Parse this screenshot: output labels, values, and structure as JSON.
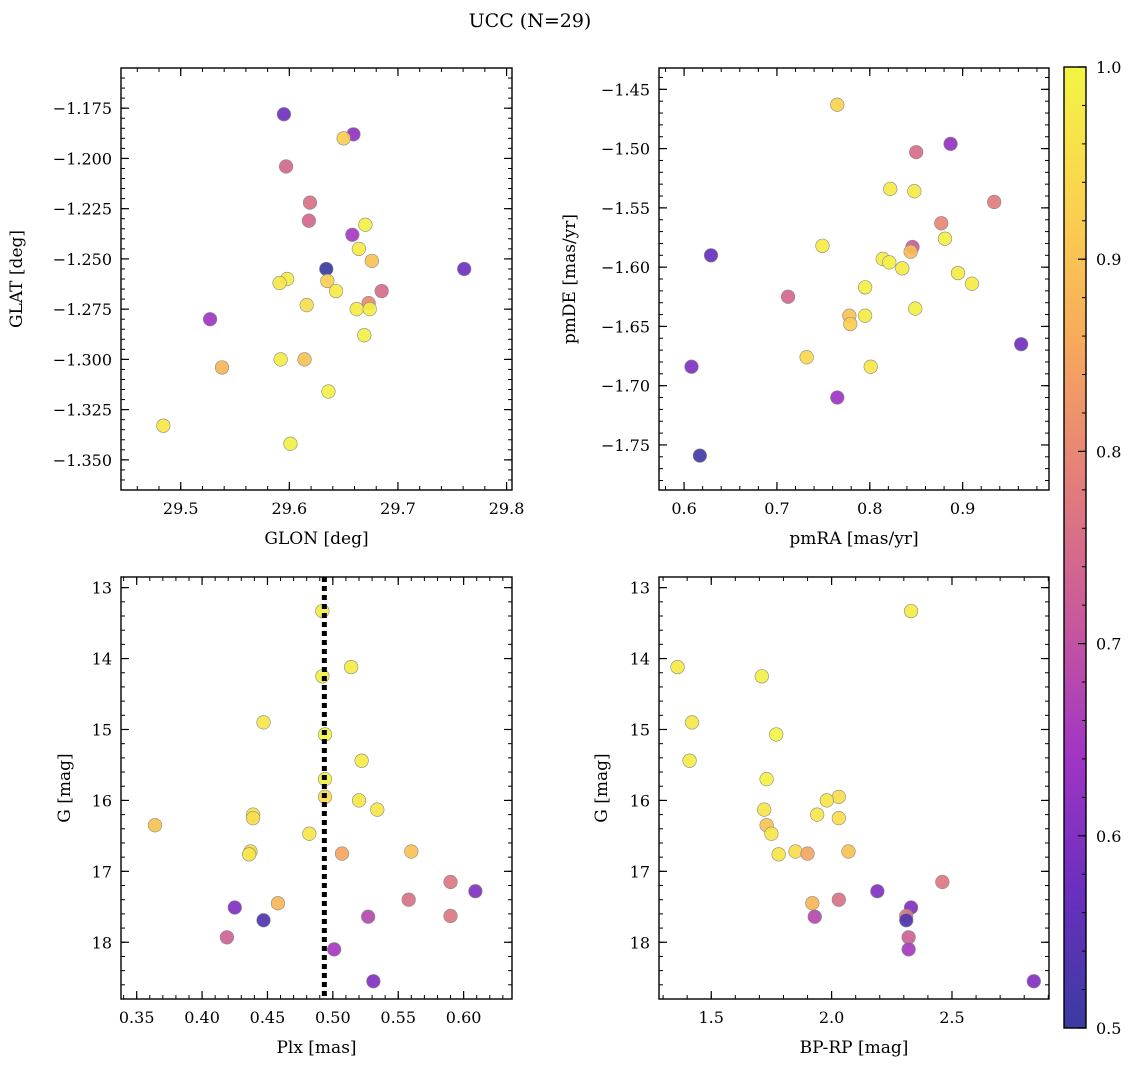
{
  "figure": {
    "title": "UCC (N=29)"
  },
  "colormap": {
    "name": "plasma",
    "stops": [
      "#3b3ba0",
      "#6a2fbf",
      "#a235c4",
      "#c85a9a",
      "#e37f7a",
      "#f7a95c",
      "#fbd24f",
      "#f2f544"
    ],
    "vmin": 0.5,
    "vmax": 1.0,
    "ticks": [
      0.5,
      0.6,
      0.7,
      0.8,
      0.9,
      1.0
    ],
    "tick_labels": [
      "0.5",
      "0.6",
      "0.7",
      "0.8",
      "0.9",
      "1.0"
    ]
  },
  "chart_data": [
    {
      "type": "scatter",
      "id": "glon-glat",
      "xlabel": "GLON [deg]",
      "ylabel": "GLAT [deg]",
      "xlim": [
        29.445,
        29.805
      ],
      "ylim": [
        -1.365,
        -1.155
      ],
      "y_inverted": false,
      "xticks": [
        29.5,
        29.6,
        29.7,
        29.8
      ],
      "xtick_labels": [
        "29.5",
        "29.6",
        "29.7",
        "29.8"
      ],
      "yticks": [
        -1.35,
        -1.325,
        -1.3,
        -1.275,
        -1.25,
        -1.225,
        -1.2,
        -1.175
      ],
      "ytick_labels": [
        "−1.350",
        "−1.325",
        "−1.300",
        "−1.275",
        "−1.250",
        "−1.225",
        "−1.200",
        "−1.175"
      ],
      "points": [
        [
          29.595,
          -1.178,
          0.58
        ],
        [
          29.659,
          -1.188,
          0.62
        ],
        [
          29.65,
          -1.19,
          0.92
        ],
        [
          29.597,
          -1.204,
          0.74
        ],
        [
          29.619,
          -1.222,
          0.76
        ],
        [
          29.618,
          -1.231,
          0.74
        ],
        [
          29.67,
          -1.233,
          0.99
        ],
        [
          29.658,
          -1.238,
          0.65
        ],
        [
          29.664,
          -1.245,
          0.98
        ],
        [
          29.676,
          -1.251,
          0.9
        ],
        [
          29.634,
          -1.255,
          0.5
        ],
        [
          29.761,
          -1.255,
          0.58
        ],
        [
          29.598,
          -1.26,
          0.98
        ],
        [
          29.591,
          -1.262,
          0.97
        ],
        [
          29.635,
          -1.261,
          0.92
        ],
        [
          29.643,
          -1.266,
          0.98
        ],
        [
          29.685,
          -1.266,
          0.75
        ],
        [
          29.673,
          -1.272,
          0.8
        ],
        [
          29.616,
          -1.273,
          0.95
        ],
        [
          29.662,
          -1.275,
          0.98
        ],
        [
          29.674,
          -1.275,
          0.99
        ],
        [
          29.527,
          -1.28,
          0.64
        ],
        [
          29.669,
          -1.288,
          0.99
        ],
        [
          29.592,
          -1.3,
          0.98
        ],
        [
          29.614,
          -1.3,
          0.9
        ],
        [
          29.538,
          -1.304,
          0.88
        ],
        [
          29.636,
          -1.316,
          0.99
        ],
        [
          29.484,
          -1.333,
          0.97
        ],
        [
          29.601,
          -1.342,
          0.99
        ]
      ]
    },
    {
      "type": "scatter",
      "id": "pmra-pmde",
      "xlabel": "pmRA [mas/yr]",
      "ylabel": "pmDE [mas/yr]",
      "xlim": [
        0.573,
        0.993
      ],
      "ylim": [
        -1.788,
        -1.432
      ],
      "y_inverted": false,
      "xticks": [
        0.6,
        0.7,
        0.8,
        0.9
      ],
      "xtick_labels": [
        "0.6",
        "0.7",
        "0.8",
        "0.9"
      ],
      "yticks": [
        -1.75,
        -1.7,
        -1.65,
        -1.6,
        -1.55,
        -1.5,
        -1.45
      ],
      "ytick_labels": [
        "−1.75",
        "−1.70",
        "−1.65",
        "−1.60",
        "−1.55",
        "−1.50",
        "−1.45"
      ],
      "points": [
        [
          0.765,
          -1.463,
          0.93
        ],
        [
          0.887,
          -1.496,
          0.62
        ],
        [
          0.85,
          -1.503,
          0.75
        ],
        [
          0.822,
          -1.534,
          0.98
        ],
        [
          0.848,
          -1.536,
          0.98
        ],
        [
          0.934,
          -1.545,
          0.78
        ],
        [
          0.877,
          -1.563,
          0.8
        ],
        [
          0.881,
          -1.576,
          0.99
        ],
        [
          0.749,
          -1.582,
          0.98
        ],
        [
          0.846,
          -1.583,
          0.72
        ],
        [
          0.844,
          -1.587,
          0.89
        ],
        [
          0.629,
          -1.59,
          0.57
        ],
        [
          0.814,
          -1.593,
          0.98
        ],
        [
          0.821,
          -1.596,
          0.99
        ],
        [
          0.835,
          -1.601,
          0.98
        ],
        [
          0.895,
          -1.605,
          0.98
        ],
        [
          0.91,
          -1.614,
          0.98
        ],
        [
          0.795,
          -1.617,
          0.99
        ],
        [
          0.712,
          -1.625,
          0.74
        ],
        [
          0.849,
          -1.635,
          0.99
        ],
        [
          0.778,
          -1.641,
          0.9
        ],
        [
          0.795,
          -1.641,
          0.98
        ],
        [
          0.779,
          -1.648,
          0.92
        ],
        [
          0.963,
          -1.665,
          0.58
        ],
        [
          0.732,
          -1.676,
          0.94
        ],
        [
          0.608,
          -1.684,
          0.6
        ],
        [
          0.801,
          -1.684,
          0.97
        ],
        [
          0.765,
          -1.71,
          0.64
        ],
        [
          0.617,
          -1.759,
          0.51
        ]
      ]
    },
    {
      "type": "scatter",
      "id": "plx-g",
      "xlabel": "Plx [mas]",
      "ylabel": "G [mag]",
      "xlim": [
        0.338,
        0.637
      ],
      "ylim": [
        12.85,
        18.8
      ],
      "y_inverted": true,
      "vline": 0.4935,
      "xticks": [
        0.35,
        0.4,
        0.45,
        0.5,
        0.55,
        0.6
      ],
      "xtick_labels": [
        "0.35",
        "0.40",
        "0.45",
        "0.50",
        "0.55",
        "0.60"
      ],
      "yticks": [
        13,
        14,
        15,
        16,
        17,
        18
      ],
      "ytick_labels": [
        "13",
        "14",
        "15",
        "16",
        "17",
        "18"
      ],
      "points": [
        [
          0.492,
          13.33,
          0.98
        ],
        [
          0.514,
          14.12,
          0.98
        ],
        [
          0.492,
          14.25,
          0.99
        ],
        [
          0.447,
          14.9,
          0.97
        ],
        [
          0.494,
          15.07,
          1.0
        ],
        [
          0.522,
          15.44,
          0.98
        ],
        [
          0.494,
          15.7,
          0.99
        ],
        [
          0.494,
          15.95,
          0.95
        ],
        [
          0.52,
          16.0,
          0.97
        ],
        [
          0.534,
          16.13,
          0.97
        ],
        [
          0.439,
          16.2,
          0.97
        ],
        [
          0.439,
          16.25,
          0.95
        ],
        [
          0.482,
          16.47,
          0.97
        ],
        [
          0.364,
          16.35,
          0.9
        ],
        [
          0.437,
          16.72,
          0.95
        ],
        [
          0.436,
          16.76,
          0.97
        ],
        [
          0.507,
          16.75,
          0.85
        ],
        [
          0.56,
          16.72,
          0.9
        ],
        [
          0.59,
          17.15,
          0.77
        ],
        [
          0.609,
          17.28,
          0.6
        ],
        [
          0.558,
          17.4,
          0.76
        ],
        [
          0.458,
          17.45,
          0.88
        ],
        [
          0.425,
          17.51,
          0.6
        ],
        [
          0.527,
          17.64,
          0.68
        ],
        [
          0.59,
          17.63,
          0.77
        ],
        [
          0.447,
          17.69,
          0.53
        ],
        [
          0.419,
          17.93,
          0.73
        ],
        [
          0.501,
          18.1,
          0.65
        ],
        [
          0.531,
          18.55,
          0.6
        ]
      ]
    },
    {
      "type": "scatter",
      "id": "bprp-g",
      "xlabel": "BP-RP [mag]",
      "ylabel": "G [mag]",
      "xlim": [
        1.283,
        2.903
      ],
      "ylim": [
        12.85,
        18.8
      ],
      "y_inverted": true,
      "xticks": [
        1.5,
        2.0,
        2.5
      ],
      "xtick_labels": [
        "1.5",
        "2.0",
        "2.5"
      ],
      "yticks": [
        13,
        14,
        15,
        16,
        17,
        18
      ],
      "ytick_labels": [
        "13",
        "14",
        "15",
        "16",
        "17",
        "18"
      ],
      "points": [
        [
          2.33,
          13.33,
          0.98
        ],
        [
          1.36,
          14.12,
          0.98
        ],
        [
          1.71,
          14.25,
          0.99
        ],
        [
          1.42,
          14.9,
          0.97
        ],
        [
          1.77,
          15.07,
          1.0
        ],
        [
          1.41,
          15.44,
          0.98
        ],
        [
          1.73,
          15.7,
          0.99
        ],
        [
          2.03,
          15.95,
          0.95
        ],
        [
          1.98,
          16.0,
          0.97
        ],
        [
          1.72,
          16.13,
          0.97
        ],
        [
          1.94,
          16.2,
          0.97
        ],
        [
          2.03,
          16.25,
          0.95
        ],
        [
          1.73,
          16.35,
          0.9
        ],
        [
          1.75,
          16.47,
          0.97
        ],
        [
          1.85,
          16.72,
          0.95
        ],
        [
          2.07,
          16.72,
          0.9
        ],
        [
          1.78,
          16.76,
          0.97
        ],
        [
          1.9,
          16.75,
          0.85
        ],
        [
          2.46,
          17.15,
          0.77
        ],
        [
          2.19,
          17.28,
          0.6
        ],
        [
          2.03,
          17.4,
          0.76
        ],
        [
          1.92,
          17.45,
          0.88
        ],
        [
          2.33,
          17.51,
          0.6
        ],
        [
          1.93,
          17.64,
          0.68
        ],
        [
          2.31,
          17.63,
          0.77
        ],
        [
          2.31,
          17.69,
          0.53
        ],
        [
          2.32,
          17.93,
          0.73
        ],
        [
          2.32,
          18.1,
          0.65
        ],
        [
          2.84,
          18.55,
          0.6
        ]
      ]
    }
  ]
}
